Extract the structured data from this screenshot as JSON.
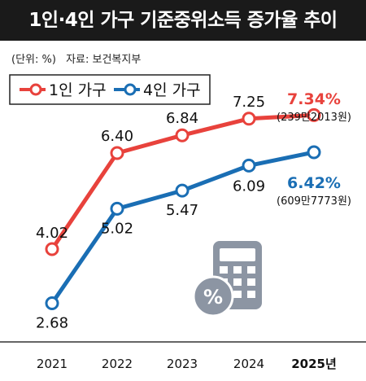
{
  "title": "1인·4인 가구 기준중위소득 증가율 추이",
  "meta": {
    "unit": "(단위: %)",
    "source": "자료: 보건복지부"
  },
  "chart_data": {
    "type": "line",
    "categories": [
      "2021",
      "2022",
      "2023",
      "2024",
      "2025년"
    ],
    "series": [
      {
        "name": "1인 가구",
        "color": "#e8423c",
        "values": [
          4.02,
          6.4,
          6.84,
          7.25,
          7.34
        ],
        "labels": [
          "4.02",
          "6.40",
          "6.84",
          "7.25",
          "7.34%"
        ],
        "note": "(239만2013원)"
      },
      {
        "name": "4인 가구",
        "color": "#1a6eb4",
        "values": [
          2.68,
          5.02,
          5.47,
          6.09,
          6.42
        ],
        "labels": [
          "2.68",
          "5.02",
          "5.47",
          "6.09",
          "6.42%"
        ],
        "note": "(609만7773원)"
      }
    ],
    "ylim": [
      0,
      8.5
    ],
    "grid": false,
    "legend": "top-left",
    "icon": "calculator-icon"
  }
}
